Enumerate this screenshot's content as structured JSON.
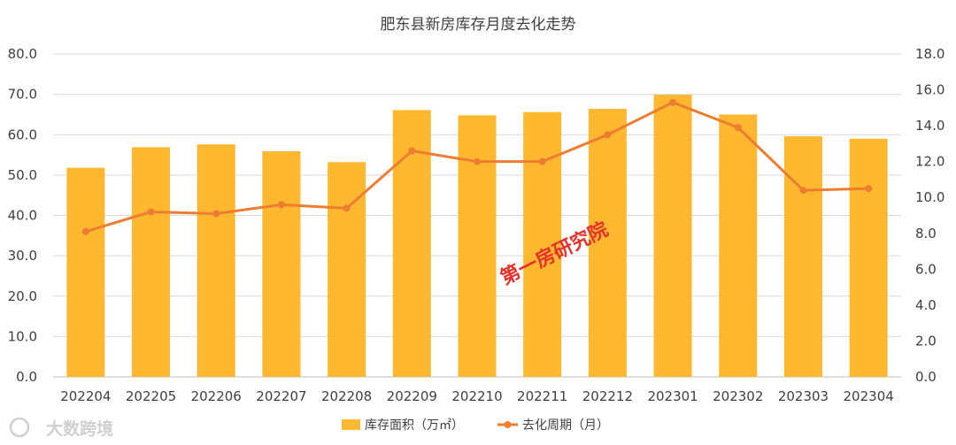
{
  "chart_data": {
    "type": "bar",
    "title": "肥东县新房库存月度去化走势",
    "categories": [
      "202204",
      "202205",
      "202206",
      "202207",
      "202208",
      "202209",
      "202210",
      "202211",
      "202212",
      "202301",
      "202302",
      "202303",
      "202304"
    ],
    "series": [
      {
        "name": "库存面积（万㎡）",
        "type": "bar",
        "axis": "left",
        "color": "#FDB830",
        "values": [
          51.8,
          56.9,
          57.6,
          55.9,
          53.2,
          66.1,
          64.8,
          65.6,
          66.4,
          69.9,
          65.0,
          59.6,
          59.0
        ]
      },
      {
        "name": "去化周期（月）",
        "type": "line",
        "axis": "right",
        "color": "#ED7D31",
        "values": [
          8.1,
          9.2,
          9.1,
          9.6,
          9.4,
          12.6,
          12.0,
          12.0,
          13.5,
          15.3,
          13.9,
          10.4,
          10.5
        ]
      }
    ],
    "y_left": {
      "min": 0,
      "max": 80,
      "step": 10,
      "tick_labels": [
        "0.0",
        "10.0",
        "20.0",
        "30.0",
        "40.0",
        "50.0",
        "60.0",
        "70.0",
        "80.0"
      ]
    },
    "y_right": {
      "min": 0,
      "max": 18,
      "step": 2,
      "tick_labels": [
        "0.0",
        "2.0",
        "4.0",
        "6.0",
        "8.0",
        "10.0",
        "12.0",
        "14.0",
        "16.0",
        "18.0"
      ]
    },
    "grid": true,
    "legend_position": "bottom"
  },
  "watermark": "第一房研究院",
  "corner_logo": "大数跨境"
}
